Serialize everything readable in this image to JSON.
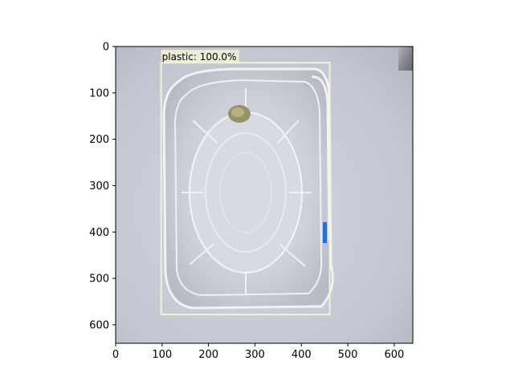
{
  "image": {
    "subject": "clear plastic food tray on light grey-blue background",
    "background_color": "#c4c6d2",
    "width": 640,
    "height": 640
  },
  "axes": {
    "x_ticks": [
      "0",
      "100",
      "200",
      "300",
      "400",
      "500",
      "600"
    ],
    "y_ticks": [
      "0",
      "100",
      "200",
      "300",
      "400",
      "500",
      "600"
    ],
    "x_range": [
      0,
      640
    ],
    "y_range": [
      0,
      640
    ]
  },
  "detection": {
    "label": "plastic: 100.0%",
    "box": {
      "x1": 98,
      "y1": 35,
      "x2": 461,
      "y2": 578
    },
    "box_color": "#f2f2d6"
  }
}
